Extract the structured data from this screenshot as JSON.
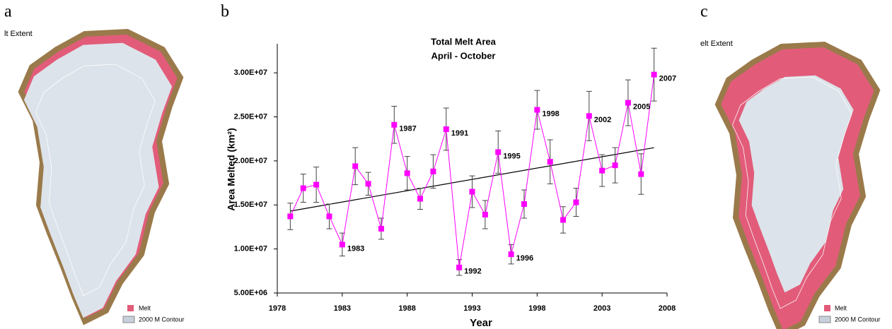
{
  "panel_a": {
    "letter": "a",
    "title": "lt Extent",
    "legend_melt": "Melt",
    "legend_contour": "2000 M Contour"
  },
  "panel_c": {
    "letter": "c",
    "title": "elt Extent",
    "legend_melt": "Melt",
    "legend_contour": "2000 M Contour"
  },
  "chart_data": {
    "type": "line",
    "letter": "b",
    "title": "Total Melt  Area",
    "subtitle": "April - October",
    "x_label": "Year",
    "y_label": "Area Melted (km²)",
    "x": [
      1979,
      1980,
      1981,
      1982,
      1983,
      1984,
      1985,
      1986,
      1987,
      1988,
      1989,
      1990,
      1991,
      1992,
      1993,
      1994,
      1995,
      1996,
      1997,
      1998,
      1999,
      2000,
      2001,
      2002,
      2003,
      2004,
      2005,
      2006,
      2007
    ],
    "values": [
      13700000,
      16900000,
      17300000,
      13700000,
      10500000,
      19400000,
      17400000,
      12300000,
      24100000,
      18600000,
      15700000,
      18800000,
      23600000,
      7900000,
      16500000,
      13900000,
      21000000,
      9400000,
      15100000,
      25800000,
      19900000,
      13300000,
      15300000,
      25100000,
      18900000,
      19500000,
      26600000,
      18500000,
      29800000
    ],
    "errors": [
      1500000,
      1600000,
      2000000,
      1400000,
      1300000,
      2100000,
      1300000,
      1200000,
      2100000,
      1900000,
      1200000,
      1900000,
      2400000,
      900000,
      1800000,
      1600000,
      2400000,
      1100000,
      1600000,
      2200000,
      2500000,
      1500000,
      1600000,
      2800000,
      1800000,
      2000000,
      2600000,
      2300000,
      3000000
    ],
    "point_labels": [
      null,
      null,
      null,
      null,
      "1983",
      null,
      null,
      null,
      "1987",
      null,
      null,
      null,
      "1991",
      "1992",
      null,
      null,
      "1995",
      "1996",
      null,
      "1998",
      null,
      null,
      null,
      "2002",
      null,
      null,
      "2005",
      null,
      "2007"
    ],
    "color": "#ff00ff",
    "trendline": {
      "x": [
        1979,
        2007
      ],
      "values": [
        14300000,
        21500000
      ],
      "color": "#000000"
    },
    "xlim": [
      1978,
      2008
    ],
    "xticks": [
      1978,
      1983,
      1988,
      1993,
      1998,
      2003,
      2008
    ],
    "ylim": [
      5000000,
      33300000
    ],
    "yticks": [
      {
        "value": 5000000,
        "label": "5.00E+06"
      },
      {
        "value": 10000000,
        "label": "1.00E+07"
      },
      {
        "value": 15000000,
        "label": "1.50E+07"
      },
      {
        "value": 20000000,
        "label": "2.00E+07"
      },
      {
        "value": 25000000,
        "label": "2.50E+07"
      },
      {
        "value": 30000000,
        "label": "3.00E+07"
      }
    ]
  }
}
